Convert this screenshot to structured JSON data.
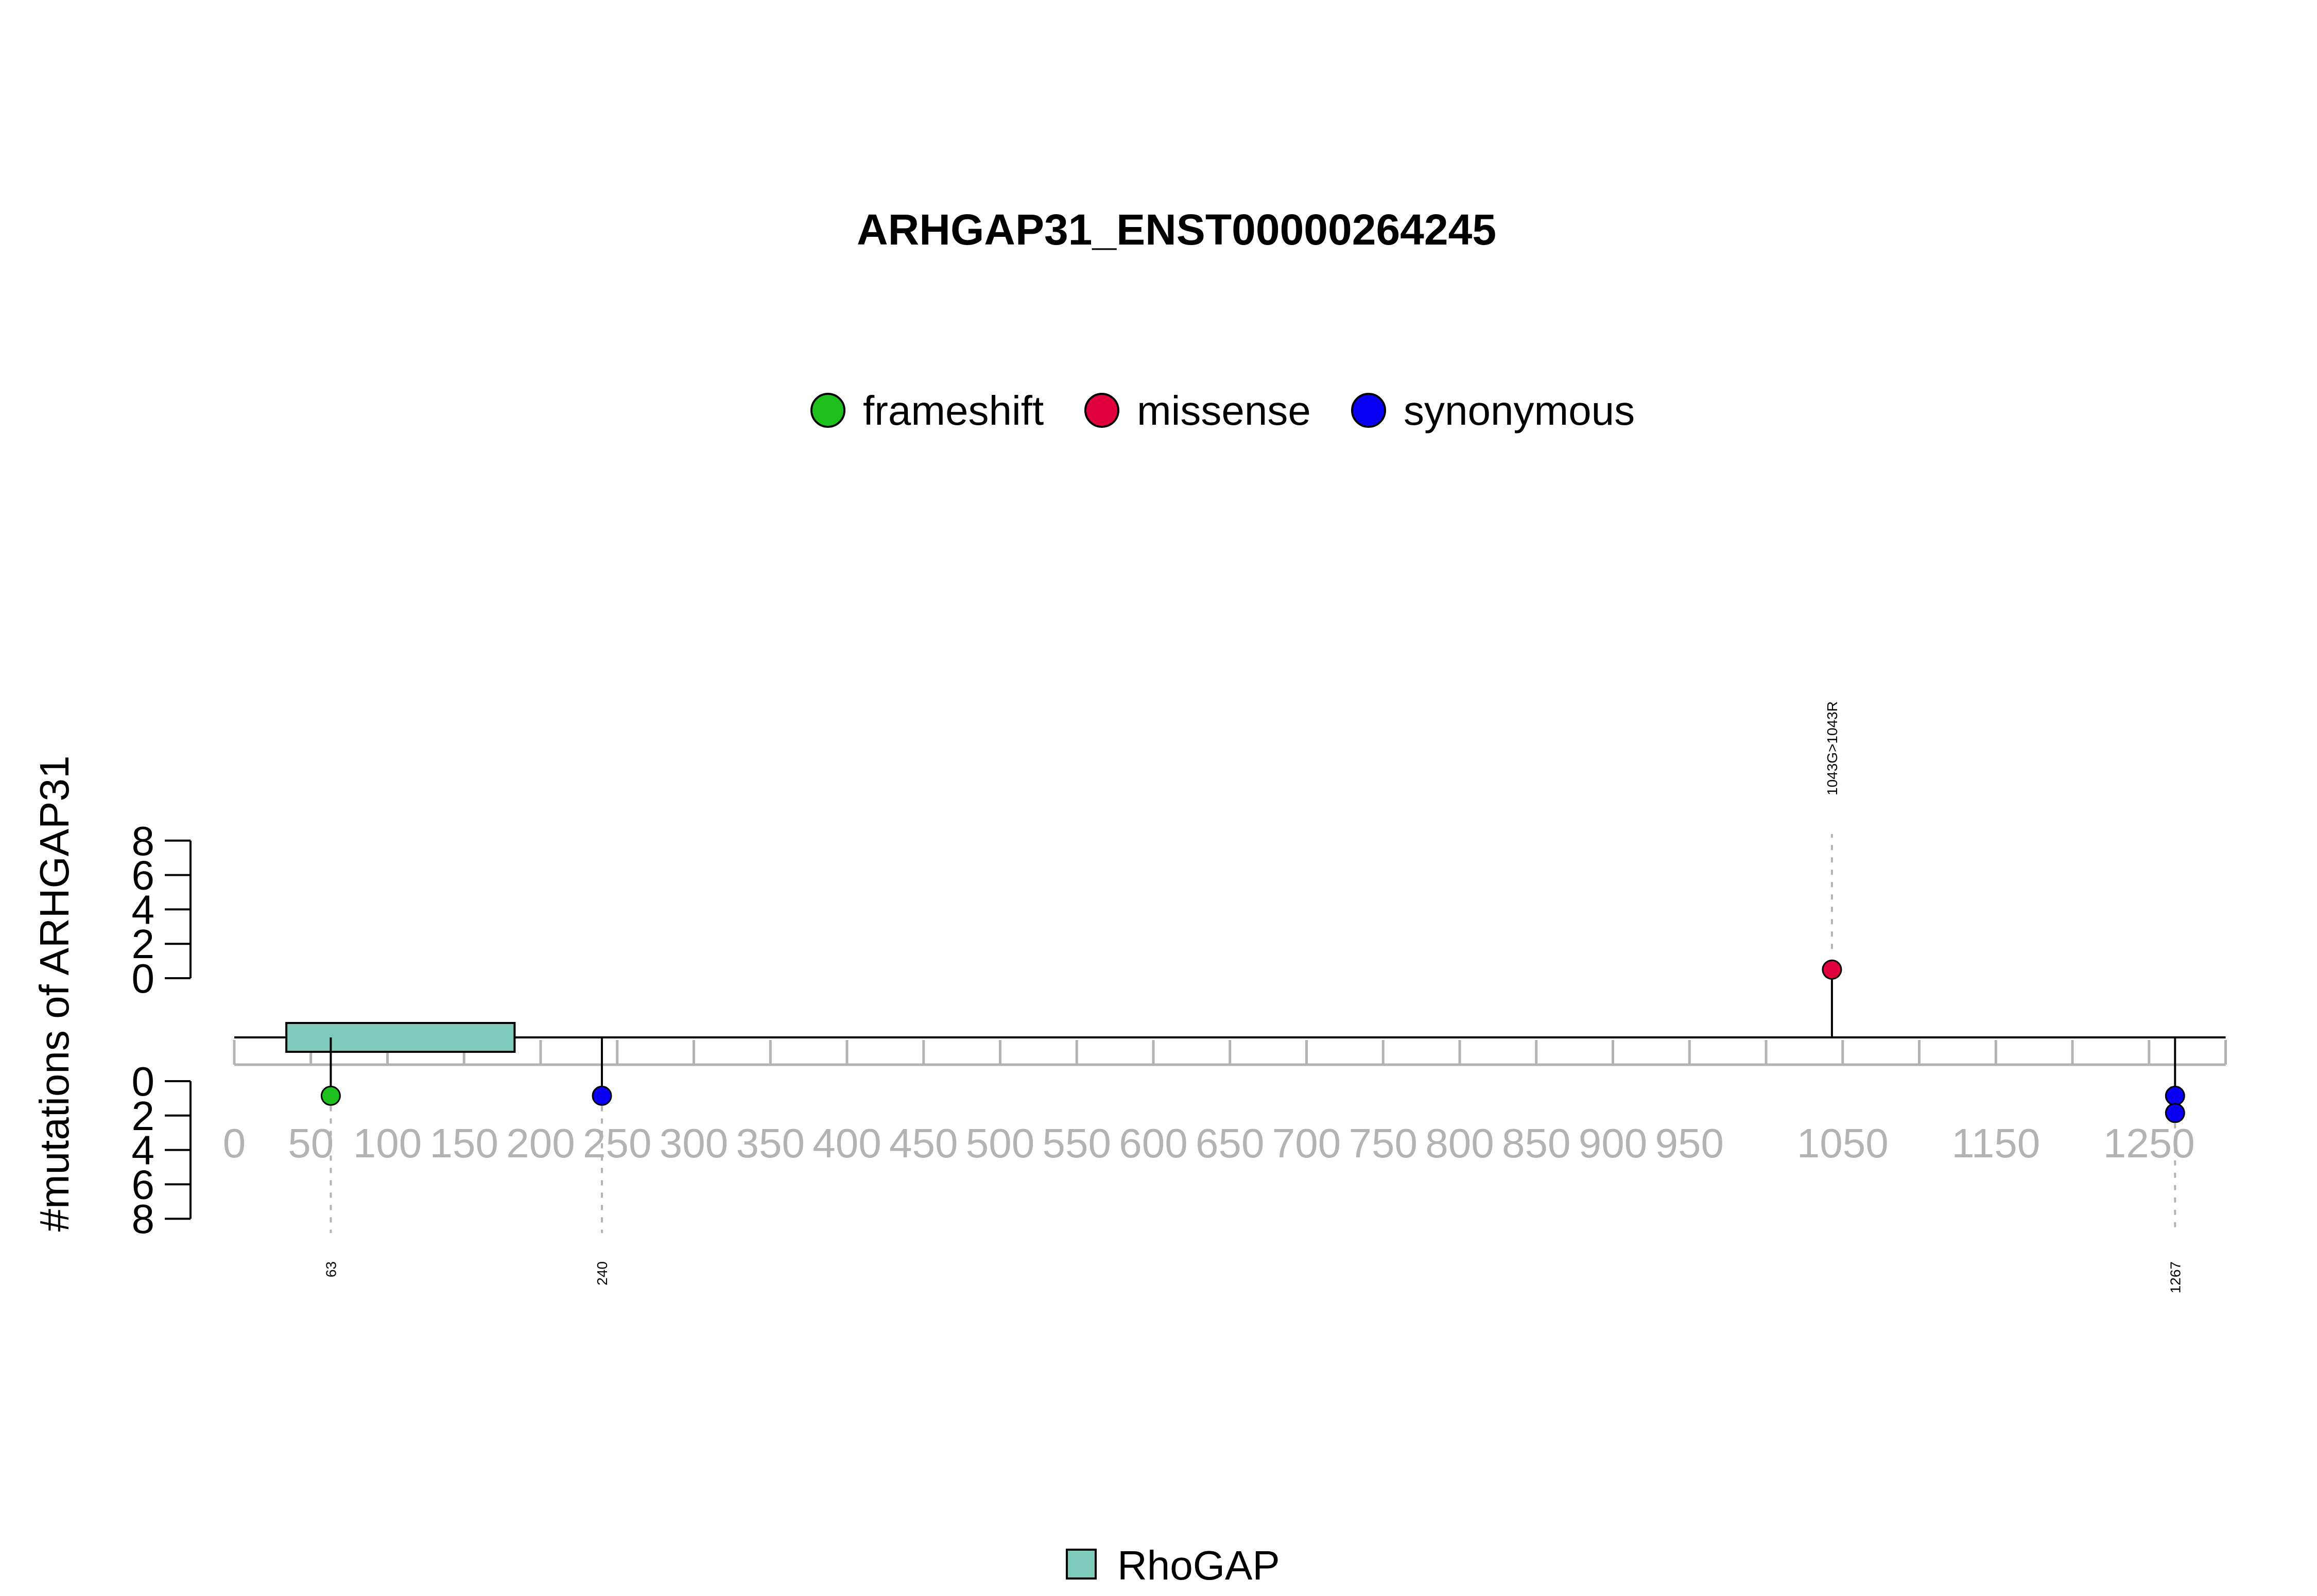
{
  "chart_data": {
    "type": "lollipop",
    "title": "ARHGAP31_ENST00000264245",
    "ylabel": "#mutations of ARHGAP31",
    "x_ticks": [
      0,
      50,
      100,
      150,
      200,
      250,
      300,
      350,
      400,
      450,
      500,
      550,
      600,
      650,
      700,
      750,
      800,
      850,
      900,
      950,
      1050,
      1150,
      1250
    ],
    "x_minor_ticks": [
      0,
      50,
      100,
      150,
      200,
      250,
      300,
      350,
      400,
      450,
      500,
      550,
      600,
      650,
      700,
      750,
      800,
      850,
      900,
      950,
      1000,
      1050,
      1100,
      1150,
      1200,
      1250,
      1300
    ],
    "xlim": [
      0,
      1300
    ],
    "y_ticks_top": [
      0,
      2,
      4,
      6,
      8
    ],
    "y_ticks_bottom": [
      0,
      2,
      4,
      6,
      8
    ],
    "ylim": [
      0,
      8
    ],
    "legend_top": [
      {
        "name": "frameshift",
        "color": "#1DC01D"
      },
      {
        "name": "missense",
        "color": "#E0003C"
      },
      {
        "name": "synonymous",
        "color": "#0A00F5"
      }
    ],
    "domains": [
      {
        "name": "RhoGAP",
        "start": 34,
        "end": 183,
        "color": "#7ECBBC"
      }
    ],
    "legend_bottom": [
      {
        "name": "RhoGAP",
        "color": "#7ECBBC"
      }
    ],
    "mutations": [
      {
        "position": 63,
        "label": "63",
        "side": "bottom",
        "type": "frameshift",
        "count": 1
      },
      {
        "position": 240,
        "label": "240",
        "side": "bottom",
        "type": "synonymous",
        "count": 1
      },
      {
        "position": 1043,
        "label": "1043G>1043R",
        "side": "top",
        "type": "missense",
        "count": 1
      },
      {
        "position": 1267,
        "label": "1267",
        "side": "bottom",
        "type": "synonymous",
        "count": 2
      }
    ]
  }
}
